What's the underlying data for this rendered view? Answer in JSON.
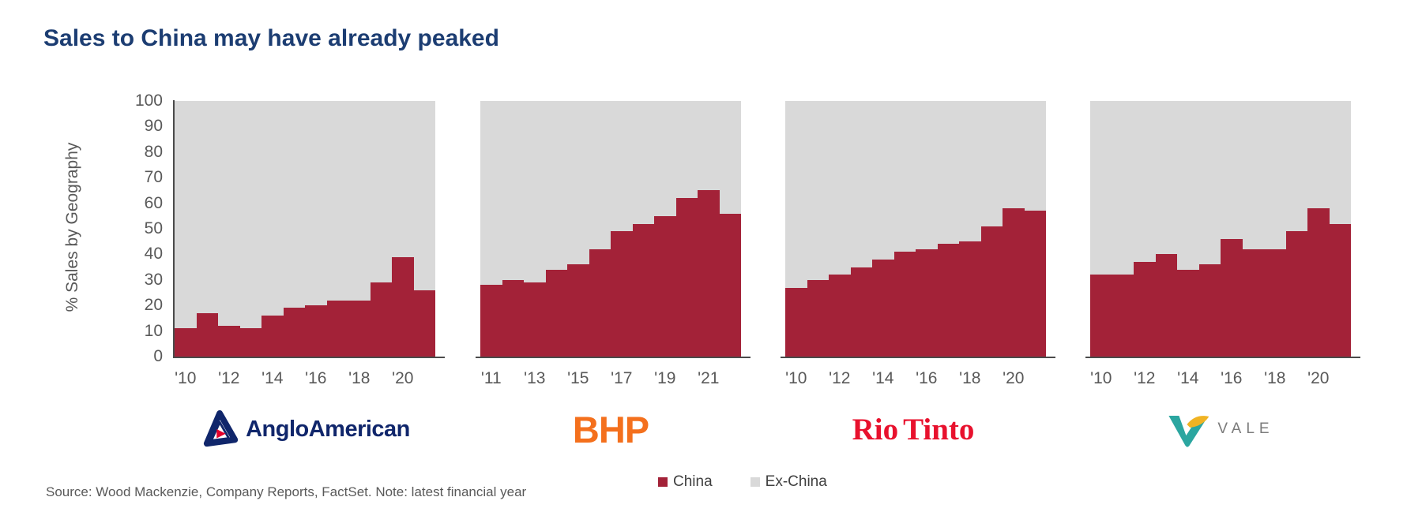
{
  "title": "Sales to China may have already peaked",
  "y_axis": {
    "label": "% Sales by Geography",
    "ticks": [
      100,
      90,
      80,
      70,
      60,
      50,
      40,
      30,
      20,
      10,
      0
    ]
  },
  "legend": {
    "items": [
      {
        "label": "China",
        "color": "#A32238"
      },
      {
        "label": "Ex-China",
        "color": "#D9D9D9"
      }
    ]
  },
  "source_note": "Source: Wood Mackenzie, Company Reports, FactSet. Note: latest financial year",
  "colors": {
    "china": "#A32238",
    "ex_china": "#D9D9D9",
    "title_navy": "#1C3D72",
    "axis_text": "#595959",
    "axis_line": "#4a4a4a",
    "anglo_navy": "#10266B",
    "anglo_red": "#E4002B",
    "bhp_orange": "#F4701D",
    "rio_red": "#E8112D",
    "vale_teal": "#2BA6A0",
    "vale_yellow": "#F0B323",
    "vale_gray": "#7B7B7B"
  },
  "chart_data": [
    {
      "type": "bar",
      "stacked": true,
      "ylim": [
        0,
        100
      ],
      "company": "AngloAmerican",
      "logo": "anglo",
      "logo_text": "AngloAmerican",
      "categories": [
        "'10",
        "'11",
        "'12",
        "'13",
        "'14",
        "'15",
        "'16",
        "'17",
        "'18",
        "'19",
        "'20",
        "'21"
      ],
      "xtick_labels_shown": [
        "'10",
        "'12",
        "'14",
        "'16",
        "'18",
        "'20"
      ],
      "series": [
        {
          "name": "China",
          "color": "#A32238",
          "values": [
            11,
            17,
            12,
            11,
            16,
            19,
            20,
            22,
            22,
            29,
            39,
            26
          ]
        },
        {
          "name": "Ex-China",
          "color": "#D9D9D9",
          "values": [
            89,
            83,
            88,
            89,
            84,
            81,
            80,
            78,
            78,
            71,
            61,
            74
          ]
        }
      ]
    },
    {
      "type": "bar",
      "stacked": true,
      "ylim": [
        0,
        100
      ],
      "company": "BHP",
      "logo": "bhp",
      "logo_text": "BHP",
      "categories": [
        "'11",
        "'12",
        "'13",
        "'14",
        "'15",
        "'16",
        "'17",
        "'18",
        "'19",
        "'20",
        "'21",
        "'22"
      ],
      "xtick_labels_shown": [
        "'11",
        "'13",
        "'15",
        "'17",
        "'19",
        "'21"
      ],
      "series": [
        {
          "name": "China",
          "color": "#A32238",
          "values": [
            28,
            30,
            29,
            34,
            36,
            42,
            49,
            52,
            55,
            62,
            65,
            56
          ]
        },
        {
          "name": "Ex-China",
          "color": "#D9D9D9",
          "values": [
            72,
            70,
            71,
            66,
            64,
            58,
            51,
            48,
            45,
            38,
            35,
            44
          ]
        }
      ]
    },
    {
      "type": "bar",
      "stacked": true,
      "ylim": [
        0,
        100
      ],
      "company": "RioTinto",
      "logo": "rio",
      "logo_text": "RioTinto",
      "logo_text_parts": [
        "Rio",
        "Tinto"
      ],
      "categories": [
        "'10",
        "'11",
        "'12",
        "'13",
        "'14",
        "'15",
        "'16",
        "'17",
        "'18",
        "'19",
        "'20",
        "'21"
      ],
      "xtick_labels_shown": [
        "'10",
        "'12",
        "'14",
        "'16",
        "'18",
        "'20"
      ],
      "series": [
        {
          "name": "China",
          "color": "#A32238",
          "values": [
            27,
            30,
            32,
            35,
            38,
            41,
            42,
            44,
            45,
            51,
            58,
            57
          ]
        },
        {
          "name": "Ex-China",
          "color": "#D9D9D9",
          "values": [
            73,
            70,
            68,
            65,
            62,
            59,
            58,
            56,
            55,
            49,
            42,
            43
          ]
        }
      ]
    },
    {
      "type": "bar",
      "stacked": true,
      "ylim": [
        0,
        100
      ],
      "company": "Vale",
      "logo": "vale",
      "logo_text": "VALE",
      "categories": [
        "'10",
        "'11",
        "'12",
        "'13",
        "'14",
        "'15",
        "'16",
        "'17",
        "'18",
        "'19",
        "'20",
        "'21"
      ],
      "xtick_labels_shown": [
        "'10",
        "'12",
        "'14",
        "'16",
        "'18",
        "'20"
      ],
      "series": [
        {
          "name": "China",
          "color": "#A32238",
          "values": [
            32,
            32,
            37,
            40,
            34,
            36,
            46,
            42,
            42,
            49,
            58,
            52
          ]
        },
        {
          "name": "Ex-China",
          "color": "#D9D9D9",
          "values": [
            68,
            68,
            63,
            60,
            66,
            64,
            54,
            58,
            58,
            51,
            42,
            48
          ]
        }
      ]
    }
  ]
}
